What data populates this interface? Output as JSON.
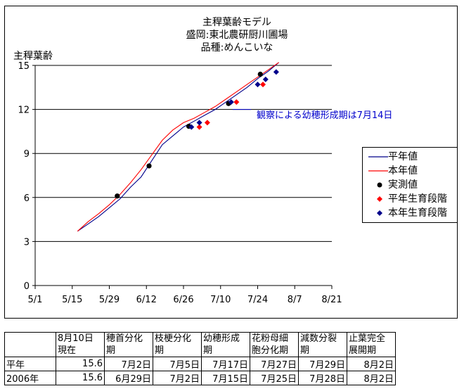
{
  "chart_data": {
    "type": "line",
    "title_lines": [
      "主稈葉齢モデル",
      "盛岡:東北農研厨川圃場",
      "品種:めんこいな"
    ],
    "ylabel": "主稈葉齢",
    "xlabel": "",
    "ylim": [
      0,
      15
    ],
    "yticks": [
      0,
      3,
      6,
      9,
      12,
      15
    ],
    "x_axis_start": "2006-05-01",
    "xlim_days": [
      0,
      112
    ],
    "xticks": [
      {
        "day": 0,
        "label": "5/1"
      },
      {
        "day": 14,
        "label": "5/15"
      },
      {
        "day": 28,
        "label": "5/29"
      },
      {
        "day": 42,
        "label": "6/12"
      },
      {
        "day": 56,
        "label": "6/26"
      },
      {
        "day": 70,
        "label": "7/10"
      },
      {
        "day": 84,
        "label": "7/24"
      },
      {
        "day": 98,
        "label": "8/7"
      },
      {
        "day": 112,
        "label": "8/21"
      }
    ],
    "grid_y": true,
    "legend_position": "right",
    "series": [
      {
        "name": "平年値",
        "kind": "line",
        "color": "#00008b",
        "points": [
          [
            16,
            3.7
          ],
          [
            20,
            4.2
          ],
          [
            24,
            4.7
          ],
          [
            28,
            5.3
          ],
          [
            32,
            5.9
          ],
          [
            36,
            6.7
          ],
          [
            40,
            7.4
          ],
          [
            44,
            8.5
          ],
          [
            48,
            9.6
          ],
          [
            52,
            10.2
          ],
          [
            56,
            10.8
          ],
          [
            60,
            11.2
          ],
          [
            64,
            11.6
          ],
          [
            68,
            12.0
          ],
          [
            72,
            12.5
          ],
          [
            76,
            13.0
          ],
          [
            80,
            13.5
          ],
          [
            84,
            14.1
          ],
          [
            88,
            14.6
          ],
          [
            92,
            15.2
          ]
        ]
      },
      {
        "name": "本年値",
        "kind": "line",
        "color": "#ff0000",
        "points": [
          [
            16,
            3.7
          ],
          [
            20,
            4.35
          ],
          [
            24,
            4.9
          ],
          [
            28,
            5.5
          ],
          [
            32,
            6.2
          ],
          [
            36,
            7.0
          ],
          [
            40,
            7.9
          ],
          [
            44,
            8.9
          ],
          [
            48,
            9.9
          ],
          [
            52,
            10.6
          ],
          [
            56,
            11.1
          ],
          [
            60,
            11.4
          ],
          [
            64,
            11.8
          ],
          [
            68,
            12.2
          ],
          [
            72,
            12.7
          ],
          [
            76,
            13.2
          ],
          [
            80,
            13.7
          ],
          [
            84,
            14.2
          ],
          [
            88,
            14.7
          ],
          [
            92,
            15.2
          ]
        ]
      },
      {
        "name": "実測値",
        "kind": "marker",
        "marker": "circle",
        "color": "#000000",
        "points": [
          [
            31,
            6.1
          ],
          [
            43,
            8.15
          ],
          [
            58,
            10.85
          ],
          [
            73,
            12.4
          ],
          [
            85,
            14.4
          ]
        ]
      },
      {
        "name": "平年生育段階",
        "kind": "marker",
        "marker": "diamond",
        "color": "#ff0000",
        "points": [
          [
            62,
            10.8
          ],
          [
            65,
            11.1
          ],
          [
            76,
            12.5
          ],
          [
            86,
            13.7
          ]
        ]
      },
      {
        "name": "本年生育段階",
        "kind": "marker",
        "marker": "diamond",
        "color": "#00008b",
        "points": [
          [
            59,
            10.8
          ],
          [
            62,
            11.1
          ],
          [
            74,
            12.5
          ],
          [
            84,
            13.7
          ],
          [
            87,
            14.05
          ],
          [
            91,
            14.55
          ]
        ]
      }
    ],
    "annotations": [
      {
        "text": "観察による幼穂形成期は7月14日",
        "color": "#0000cc",
        "target_day": 74,
        "target_y": 12.0
      }
    ]
  },
  "table": {
    "headers": [
      "",
      [
        "8月10日",
        "現在"
      ],
      [
        "穂首分化",
        "期"
      ],
      [
        "枝梗分化",
        "期"
      ],
      [
        "幼穂形成",
        "期"
      ],
      [
        "花粉母細",
        "胞分化期"
      ],
      [
        "減数分裂",
        "期"
      ],
      [
        "止葉完全",
        "展開期"
      ]
    ],
    "rows": [
      {
        "label": "平年",
        "values": [
          "15.6",
          "7月2日",
          "7月5日",
          "7月17日",
          "7月27日",
          "7月29日",
          "8月2日"
        ]
      },
      {
        "label": "2006年",
        "values": [
          "15.6",
          "6月29日",
          "7月2日",
          "7月15日",
          "7月25日",
          "7月28日",
          "8月2日"
        ]
      }
    ]
  }
}
